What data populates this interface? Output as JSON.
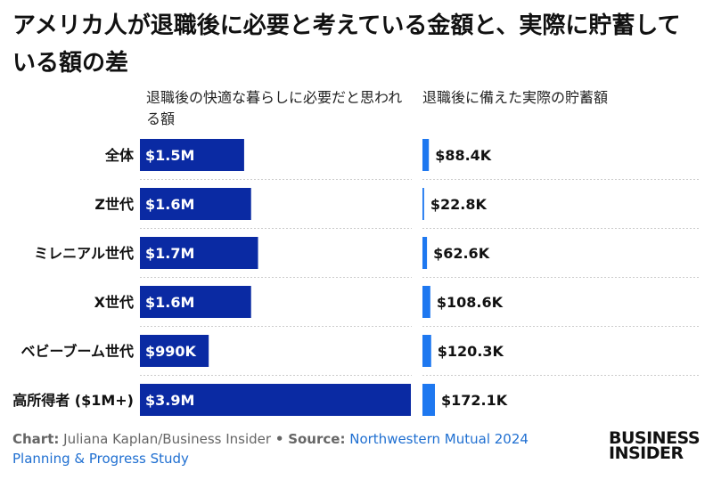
{
  "title": "アメリカ人が退職後に必要と考えている金額と、実際に貯蓄している額の差",
  "left_header": "退職後の快適な暮らしに必要だと思われる額",
  "right_header": "退職後に備えた実際の貯蓄額",
  "footer": {
    "chart_prefix": "Chart:",
    "chart_credit": "Juliana Kaplan/Business Insider",
    "bullet": "•",
    "source_prefix": "Source:",
    "source_name": "Northwestern Mutual 2024 Planning & Progress Study"
  },
  "logo": {
    "line1": "BUSINESS",
    "line2": "INSIDER"
  },
  "colors": {
    "needed_bar": "#0a2aa3",
    "saved_bar": "#1e78f0",
    "divider": "#cccccc"
  },
  "chart_data": {
    "type": "bar",
    "orientation": "horizontal",
    "categories": [
      "全体",
      "Z世代",
      "ミレニアル世代",
      "X世代",
      "ベビーブーム世代",
      "高所得者 ($1M+)"
    ],
    "series": [
      {
        "name": "退職後の快適な暮らしに必要だと思われる額",
        "values": [
          1.5,
          1.6,
          1.7,
          1.6,
          0.99,
          3.9
        ],
        "unit": "$M",
        "labels": [
          "$1.5M",
          "$1.6M",
          "$1.7M",
          "$1.6M",
          "$990K",
          "$3.9M"
        ]
      },
      {
        "name": "退職後に備えた実際の貯蓄額",
        "values": [
          88.4,
          22.8,
          62.6,
          108.6,
          120.3,
          172.1
        ],
        "unit": "$K",
        "labels": [
          "$88.4K",
          "$22.8K",
          "$62.6K",
          "$108.6K",
          "$120.3K",
          "$172.1K"
        ]
      }
    ]
  }
}
